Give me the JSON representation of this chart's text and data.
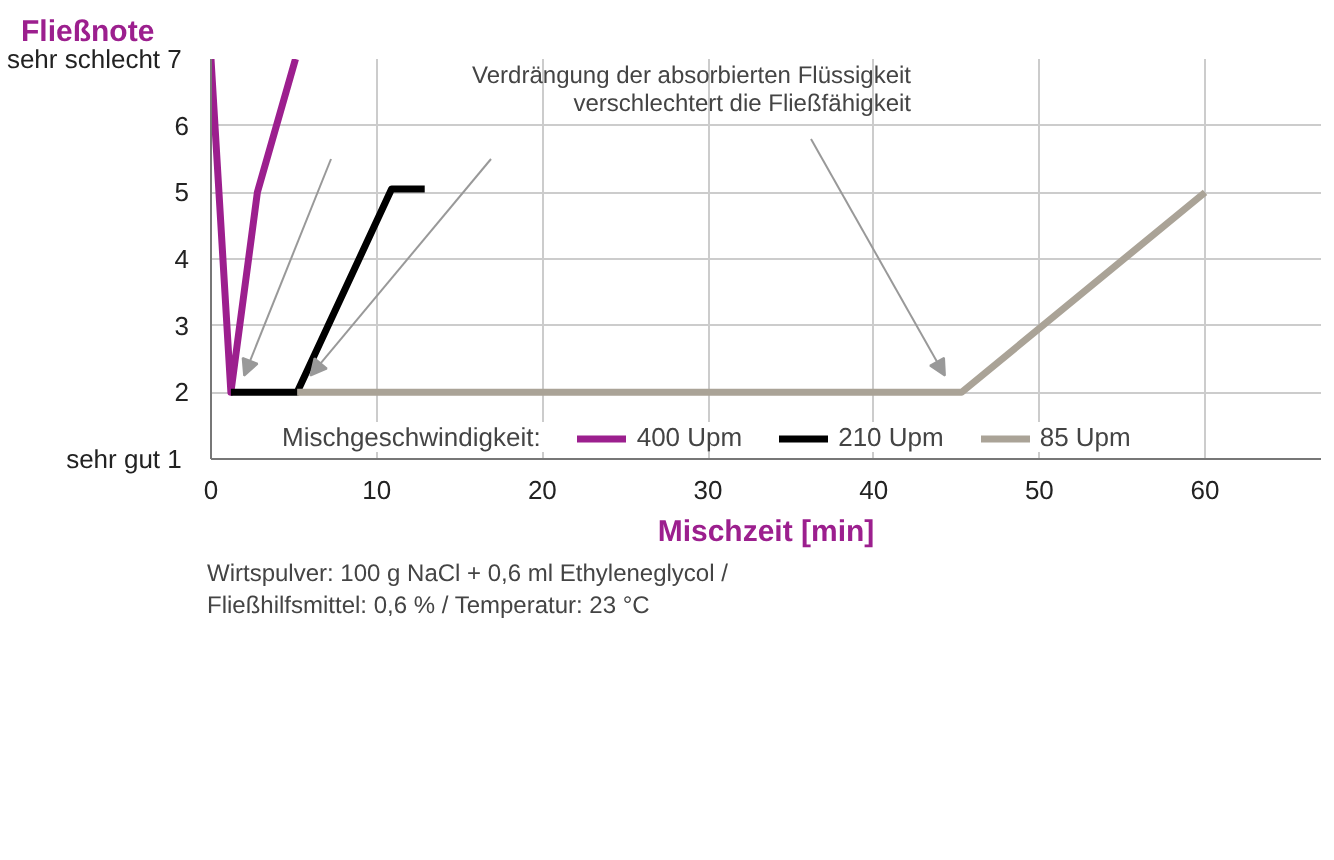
{
  "chart_data": {
    "type": "line",
    "title": "Fließnote",
    "xlabel": "Mischzeit [min]",
    "legend_title": "Mischgeschwindigkeit:",
    "xlim": [
      0,
      67
    ],
    "ylim": [
      1,
      7
    ],
    "xticks": [
      0,
      10,
      20,
      30,
      40,
      50,
      60
    ],
    "yticks": [
      {
        "value": 1,
        "label": "sehr gut  1"
      },
      2,
      3,
      4,
      5,
      6,
      {
        "value": 7,
        "label": "sehr schlecht  7"
      }
    ],
    "grid": true,
    "legend": "bottom",
    "marker": "none",
    "line_style": "solid",
    "series": [
      {
        "name": "400 Upm",
        "color": "#9c1f8e",
        "x": [
          0,
          1.2,
          2.8,
          5.1
        ],
        "values": [
          7,
          2,
          5,
          7
        ]
      },
      {
        "name": "210 Upm",
        "color": "#000000",
        "x": [
          1.2,
          5.2,
          10.9,
          12.9
        ],
        "values": [
          2,
          2,
          5.05,
          5.05
        ]
      },
      {
        "name": "85 Upm",
        "color": "#aaa397",
        "x": [
          5.2,
          45.3,
          60
        ],
        "values": [
          2,
          2,
          5
        ]
      }
    ],
    "annotations": [
      "Verdrängung der absorbierten Flüssigkeit\nverschlechtert die Fließfähigkeit",
      "Wirtspulver: 100 g NaCl + 0,6 ml Ethyleneglycol /",
      "Fließhilfsmittel: 0,6 % / Temperatur: 23 °C"
    ]
  }
}
